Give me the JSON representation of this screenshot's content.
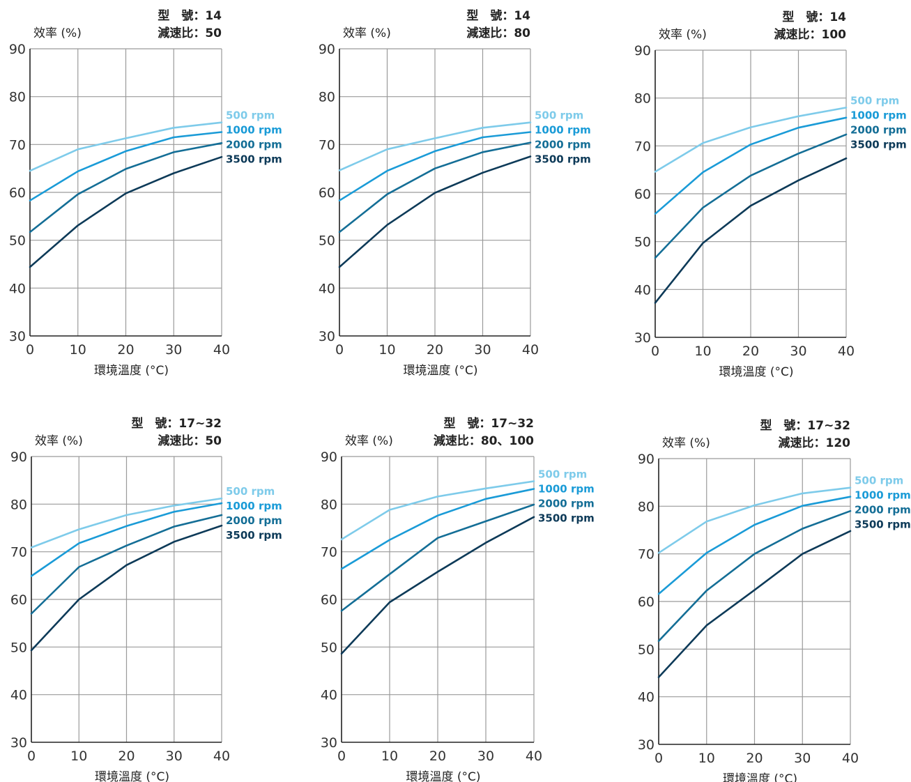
{
  "colors": {
    "500rpm": "#7ecbea",
    "1000rpm": "#1a9bd7",
    "2000rpm": "#146e96",
    "3500rpm": "#0d3a58",
    "grid": "#9a9a9a"
  },
  "chart_data": [
    {
      "type": "line",
      "model_label": "型　號：14",
      "ratio_label": "減速比：50",
      "ylabel": "效率 (%)",
      "xlabel": "環境溫度 (°C)",
      "x": [
        0,
        10,
        20,
        30,
        40
      ],
      "xlim": [
        0,
        40
      ],
      "ylim": [
        30,
        90
      ],
      "xticks": [
        "0",
        "10",
        "20",
        "30",
        "40"
      ],
      "yticks": [
        "30",
        "40",
        "50",
        "60",
        "70",
        "80",
        "90"
      ],
      "grid": true,
      "legend": "right",
      "series": [
        {
          "name": "500 rpm",
          "values": [
            64.5,
            69,
            71.3,
            73.5,
            74.6
          ]
        },
        {
          "name": "1000 rpm",
          "values": [
            58.3,
            64.4,
            68.6,
            71.5,
            72.6
          ]
        },
        {
          "name": "2000 rpm",
          "values": [
            51.7,
            59.6,
            64.9,
            68.4,
            70.3
          ]
        },
        {
          "name": "3500 rpm",
          "values": [
            44.4,
            53.1,
            59.8,
            64.0,
            67.4
          ]
        }
      ]
    },
    {
      "type": "line",
      "model_label": "型　號：14",
      "ratio_label": "減速比：80",
      "ylabel": "效率 (%)",
      "xlabel": "環境溫度 (°C)",
      "x": [
        0,
        10,
        20,
        30,
        40
      ],
      "xlim": [
        0,
        40
      ],
      "ylim": [
        30,
        90
      ],
      "xticks": [
        "0",
        "10",
        "20",
        "30",
        "40"
      ],
      "yticks": [
        "30",
        "40",
        "50",
        "60",
        "70",
        "80",
        "90"
      ],
      "grid": true,
      "legend": "right",
      "series": [
        {
          "name": "500 rpm",
          "values": [
            64.6,
            69.0,
            71.3,
            73.5,
            74.6
          ]
        },
        {
          "name": "1000 rpm",
          "values": [
            58.3,
            64.5,
            68.6,
            71.5,
            72.6
          ]
        },
        {
          "name": "2000 rpm",
          "values": [
            51.7,
            59.6,
            65.0,
            68.4,
            70.4
          ]
        },
        {
          "name": "3500 rpm",
          "values": [
            44.4,
            53.2,
            59.9,
            64.1,
            67.5
          ]
        }
      ]
    },
    {
      "type": "line",
      "model_label": "型　號：14",
      "ratio_label": "減速比：100",
      "ylabel": "效率 (%)",
      "xlabel": "環境溫度 (°C)",
      "x": [
        0,
        10,
        20,
        30,
        40
      ],
      "xlim": [
        0,
        40
      ],
      "ylim": [
        30,
        90
      ],
      "xticks": [
        "0",
        "10",
        "20",
        "30",
        "40"
      ],
      "yticks": [
        "30",
        "40",
        "50",
        "60",
        "70",
        "80",
        "90"
      ],
      "grid": true,
      "legend": "right",
      "series": [
        {
          "name": "500 rpm",
          "values": [
            64.6,
            70.6,
            73.9,
            76.2,
            78.0
          ]
        },
        {
          "name": "1000 rpm",
          "values": [
            55.8,
            64.5,
            70.3,
            73.8,
            75.9
          ]
        },
        {
          "name": "2000 rpm",
          "values": [
            46.6,
            57.1,
            63.8,
            68.4,
            72.4
          ]
        },
        {
          "name": "3500 rpm",
          "values": [
            37.2,
            49.7,
            57.5,
            62.8,
            67.4
          ]
        }
      ]
    },
    {
      "type": "line",
      "model_label": "型　號：17~32",
      "ratio_label": "減速比：50",
      "ylabel": "效率 (%)",
      "xlabel": "環境溫度 (°C)",
      "x": [
        0,
        10,
        20,
        30,
        40
      ],
      "xlim": [
        0,
        40
      ],
      "ylim": [
        30,
        90
      ],
      "xticks": [
        "0",
        "10",
        "20",
        "30",
        "40"
      ],
      "yticks": [
        "30",
        "40",
        "50",
        "60",
        "70",
        "80",
        "90"
      ],
      "grid": true,
      "legend": "right",
      "series": [
        {
          "name": "500 rpm",
          "values": [
            70.9,
            74.7,
            77.7,
            79.7,
            81.2
          ]
        },
        {
          "name": "1000 rpm",
          "values": [
            64.9,
            71.8,
            75.4,
            78.4,
            80.2
          ]
        },
        {
          "name": "2000 rpm",
          "values": [
            57.0,
            66.8,
            71.3,
            75.3,
            77.7
          ]
        },
        {
          "name": "3500 rpm",
          "values": [
            49.3,
            60.0,
            67.2,
            72.1,
            75.5
          ]
        }
      ]
    },
    {
      "type": "line",
      "model_label": "型　號：17~32",
      "ratio_label": "減速比：80、100",
      "ylabel": "效率 (%)",
      "xlabel": "環境溫度 (°C)",
      "x": [
        0,
        10,
        20,
        30,
        40
      ],
      "xlim": [
        0,
        40
      ],
      "ylim": [
        30,
        90
      ],
      "xticks": [
        "0",
        "10",
        "20",
        "30",
        "40"
      ],
      "yticks": [
        "30",
        "40",
        "50",
        "60",
        "70",
        "80",
        "90"
      ],
      "grid": true,
      "legend": "right",
      "series": [
        {
          "name": "500 rpm",
          "values": [
            72.6,
            78.8,
            81.6,
            83.3,
            84.8
          ]
        },
        {
          "name": "1000 rpm",
          "values": [
            66.4,
            72.5,
            77.6,
            81.1,
            83.2
          ]
        },
        {
          "name": "2000 rpm",
          "values": [
            57.6,
            65.3,
            72.9,
            76.4,
            79.9
          ]
        },
        {
          "name": "3500 rpm",
          "values": [
            48.6,
            59.4,
            65.8,
            71.9,
            77.3
          ]
        }
      ]
    },
    {
      "type": "line",
      "model_label": "型　號：17~32",
      "ratio_label": "減速比：120",
      "ylabel": "效率 (%)",
      "xlabel": "環境溫度 (°C)",
      "x": [
        0,
        10,
        20,
        30,
        40
      ],
      "xlim": [
        0,
        40
      ],
      "ylim": [
        30,
        90
      ],
      "xticks": [
        "0",
        "10",
        "20",
        "30",
        "40"
      ],
      "yticks": [
        "30",
        "40",
        "50",
        "60",
        "70",
        "80",
        "90"
      ],
      "grid": true,
      "legend": "right",
      "series": [
        {
          "name": "500 rpm",
          "values": [
            70.2,
            76.8,
            80.2,
            82.7,
            83.9
          ]
        },
        {
          "name": "1000 rpm",
          "values": [
            61.6,
            70.2,
            76.1,
            80.1,
            82.0
          ]
        },
        {
          "name": "2000 rpm",
          "values": [
            51.7,
            62.3,
            70.0,
            75.3,
            79.0
          ]
        },
        {
          "name": "3500 rpm",
          "values": [
            44.1,
            55.0,
            62.4,
            70.0,
            74.8
          ]
        }
      ]
    }
  ]
}
